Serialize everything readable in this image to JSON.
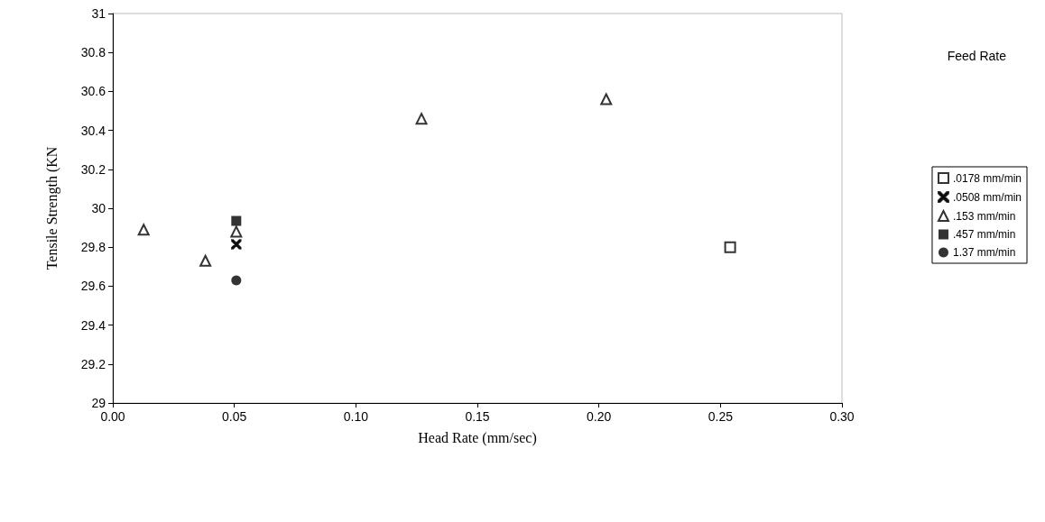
{
  "chart_data": {
    "type": "scatter",
    "xlabel": "Head Rate (mm/sec)",
    "ylabel": "Tensile Strength (KN",
    "legend_title": "Feed Rate",
    "series": [
      {
        "name": ".0178 mm/min",
        "color": "#000000",
        "marker": "square",
        "x": [
          0.254
        ],
        "values": [
          29.8
        ]
      },
      {
        "name": ".0508 mm/min",
        "color": "#000000",
        "marker": "cross",
        "x": [
          0.0508
        ],
        "values": [
          29.815
        ]
      },
      {
        "name": ".153 mm/min",
        "color": "#000000",
        "marker": "triangle",
        "x": [
          0.0127,
          0.0381,
          0.0508,
          0.127,
          0.203
        ],
        "values": [
          29.89,
          29.73,
          29.88,
          30.46,
          30.56
        ]
      },
      {
        "name": ".457 mm/min",
        "color": "#000000",
        "marker": "square",
        "x": [
          0.0508
        ],
        "values": [
          29.935
        ]
      },
      {
        "name": "1.37 mm/min",
        "color": "#000000",
        "marker": "circle",
        "x": [
          0.0508
        ],
        "values": [
          29.63
        ]
      }
    ],
    "xlim": [
      0,
      0.3
    ],
    "xticks": [
      {
        "value": 0,
        "label": "0.00"
      },
      {
        "value": 0.05,
        "label": "0.05"
      },
      {
        "value": 0.1,
        "label": "0.10"
      },
      {
        "value": 0.15,
        "label": "0.15"
      },
      {
        "value": 0.2,
        "label": "0.20"
      },
      {
        "value": 0.25,
        "label": "0.25"
      },
      {
        "value": 0.3,
        "label": "0.30"
      }
    ],
    "ylim": [
      29,
      31
    ],
    "yticks": [
      29,
      29.2,
      29.4,
      29.6,
      29.8,
      30,
      30.2,
      30.4,
      30.6,
      30.8,
      31
    ],
    "grid": false,
    "legend": "right"
  }
}
